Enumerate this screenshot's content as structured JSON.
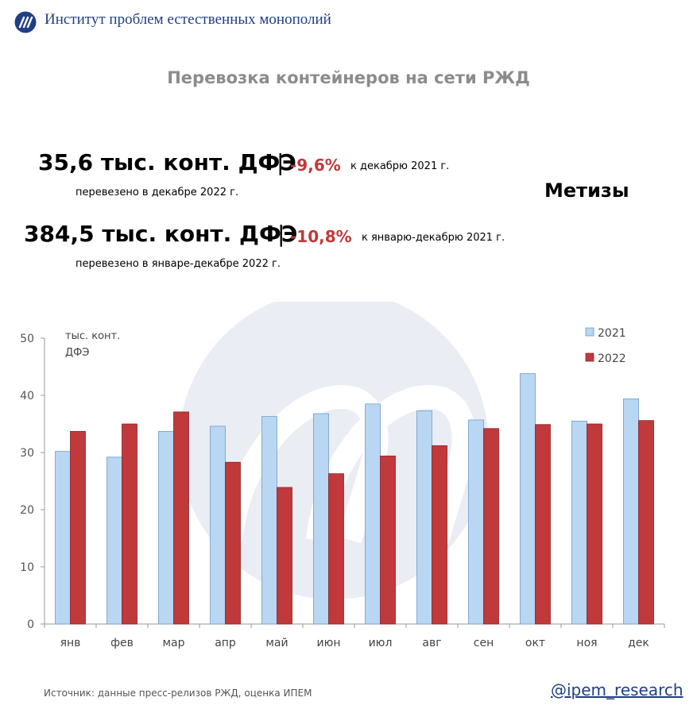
{
  "header": {
    "org_name": "Институт проблем естественных монополий"
  },
  "title": "Перевозка контейнеров на сети РЖД",
  "category": "Метизы",
  "stats": {
    "month": {
      "value": "35,6 тыс. конт. ДФЭ",
      "change": "-9,6%",
      "comparison": "к декабрю 2021 г.",
      "caption": "перевезено в декабре 2022 г."
    },
    "year": {
      "value": "384,5 тыс. конт. ДФЭ",
      "change": "-10,8%",
      "comparison": "к январю-декабрю 2021 г.",
      "caption": "перевезено в январе-декабре 2022 г."
    }
  },
  "footer": {
    "source": "Источник: данные пресс-релизов РЖД, оценка ИПЕМ",
    "handle": "@ipem_research"
  },
  "colors": {
    "series_2021": "#b9d6f2",
    "series_2022": "#c0393b",
    "accent_red": "#c0393b",
    "brand_blue": "#1f3f86"
  },
  "chart_data": {
    "type": "bar",
    "ylabel": "тыс. конт. ДФЭ",
    "xlabel": "",
    "ylim": [
      0,
      50
    ],
    "yticks": [
      0,
      10,
      20,
      30,
      40,
      50
    ],
    "categories": [
      "янв",
      "фев",
      "мар",
      "апр",
      "май",
      "июн",
      "июл",
      "авг",
      "сен",
      "окт",
      "ноя",
      "дек"
    ],
    "series": [
      {
        "name": "2021",
        "values": [
          30.2,
          29.2,
          33.7,
          34.6,
          36.3,
          36.8,
          38.5,
          37.3,
          35.7,
          43.8,
          35.5,
          39.4
        ]
      },
      {
        "name": "2022",
        "values": [
          33.7,
          35.0,
          37.1,
          28.3,
          23.9,
          26.3,
          29.4,
          31.2,
          34.2,
          34.9,
          35.0,
          35.6
        ]
      }
    ],
    "legend_position": "top-right",
    "grid": false
  }
}
